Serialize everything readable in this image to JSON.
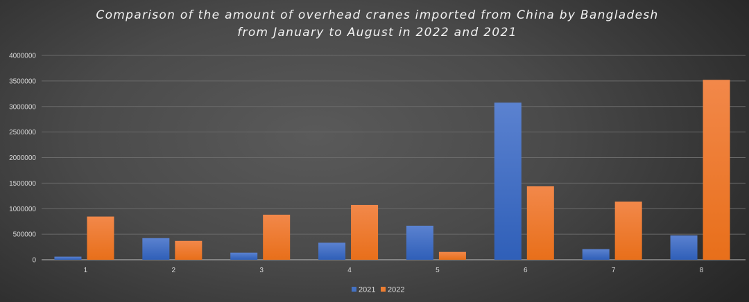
{
  "chart_data": {
    "type": "bar",
    "title_line1": "Comparison of the amount of overhead cranes imported from China by Bangladesh",
    "title_line2": "from January to August in 2022 and 2021",
    "xlabel": "",
    "ylabel": "",
    "categories": [
      "1",
      "2",
      "3",
      "4",
      "5",
      "6",
      "7",
      "8"
    ],
    "series": [
      {
        "name": "2021",
        "color": "#4472c4",
        "values": [
          60000,
          423000,
          139000,
          333000,
          666000,
          3076000,
          207000,
          477000
        ]
      },
      {
        "name": "2022",
        "color": "#ed7d31",
        "values": [
          846000,
          369000,
          882000,
          1072000,
          153000,
          1437000,
          1139000,
          3522000
        ]
      }
    ],
    "ylim": [
      0,
      4000000
    ],
    "yticks": [
      "0",
      "500000",
      "1000000",
      "1500000",
      "2000000",
      "2500000",
      "3000000",
      "3500000",
      "4000000"
    ],
    "grid": true,
    "legend_position": "bottom"
  }
}
